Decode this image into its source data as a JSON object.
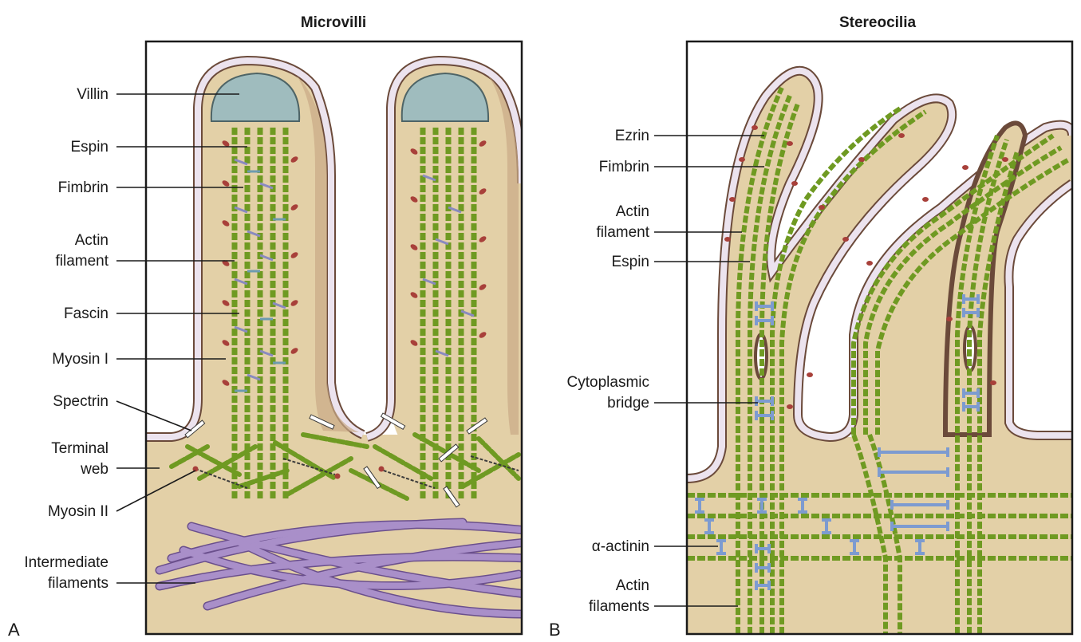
{
  "panel_a": {
    "title": "Microvilli",
    "letter": "A",
    "labels": {
      "villin": "Villin",
      "espin": "Espin",
      "fimbrin": "Fimbrin",
      "actin_filament_1": "Actin",
      "actin_filament_2": "filament",
      "fascin": "Fascin",
      "myosin_i": "Myosin I",
      "spectrin": "Spectrin",
      "terminal_web_1": "Terminal",
      "terminal_web_2": "web",
      "myosin_ii": "Myosin II",
      "intermediate_1": "Intermediate",
      "intermediate_2": "filaments"
    }
  },
  "panel_b": {
    "title": "Stereocilia",
    "letter": "B",
    "labels": {
      "ezrin": "Ezrin",
      "fimbrin": "Fimbrin",
      "actin_filament_1": "Actin",
      "actin_filament_2": "filament",
      "espin": "Espin",
      "cyto_bridge_1": "Cytoplasmic",
      "cyto_bridge_2": "bridge",
      "alpha_actinin": "α-actinin",
      "actin_filaments_1": "Actin",
      "actin_filaments_2": "filaments"
    }
  },
  "colors": {
    "cytoplasm": "#e3d0a7",
    "membrane_outline": "#6b4a3a",
    "membrane_fill": "#ece3ee",
    "actin": "#6f9a22",
    "villin": "#9fbcbe",
    "myosin": "#a8403a",
    "intermediate_filaments": "#a98fc9",
    "alpha_actinin": "#7d9bd0",
    "fascin_link": "#8a8ac0"
  }
}
